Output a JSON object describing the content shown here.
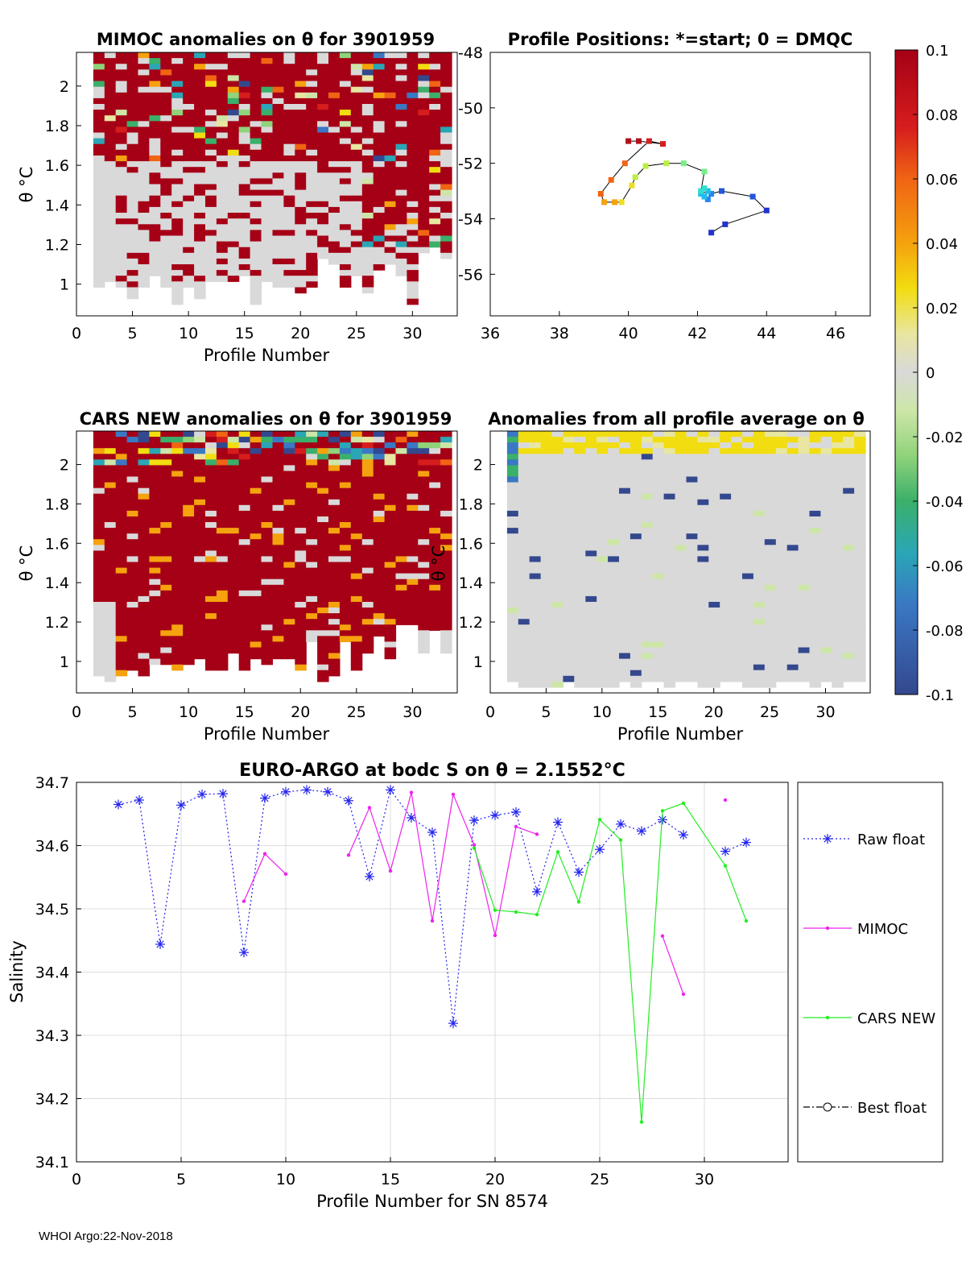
{
  "colors": {
    "raw_float": "#2222ee",
    "mimoc": "#ee22ee",
    "cars_new": "#22ee22",
    "best_float": "#000000",
    "positive_anomaly": "#b0101a",
    "neutral_anomaly": "#d9d9d9",
    "grid": "#dddddd"
  },
  "panels": {
    "mimoc": {
      "title": "MIMOC anomalies on θ  for 3901959",
      "xlabel": "Profile Number",
      "ylabel": "θ °C",
      "xticks": [
        "0",
        "5",
        "10",
        "15",
        "20",
        "25",
        "30"
      ],
      "yticks": [
        "1",
        "1.2",
        "1.4",
        "1.6",
        "1.8",
        "2"
      ]
    },
    "positions": {
      "title": "Profile Positions: *=start; 0 = DMQC",
      "xticks": [
        "36",
        "38",
        "40",
        "42",
        "44",
        "46"
      ],
      "yticks": [
        "-48",
        "-50",
        "-52",
        "-54",
        "-56"
      ]
    },
    "cars": {
      "title": "CARS NEW anomalies on θ for 3901959",
      "xlabel": "Profile Number",
      "ylabel": "θ °C",
      "xticks": [
        "0",
        "5",
        "10",
        "15",
        "20",
        "25",
        "30"
      ],
      "yticks": [
        "1",
        "1.2",
        "1.4",
        "1.6",
        "1.8",
        "2"
      ]
    },
    "average": {
      "title": "Anomalies from all profile average on θ",
      "xlabel": "Profile Number",
      "ylabel": "θ °C",
      "xticks": [
        "0",
        "5",
        "10",
        "15",
        "20",
        "25",
        "30"
      ],
      "yticks": [
        "1",
        "1.2",
        "1.4",
        "1.6",
        "1.8",
        "2"
      ]
    }
  },
  "colorbar": {
    "ticks": [
      "0.1",
      "0.08",
      "0.06",
      "0.04",
      "0.02",
      "0",
      "-0.02",
      "-0.04",
      "-0.06",
      "-0.08",
      "-0.1"
    ]
  },
  "footer": "WHOI Argo:22-Nov-2018",
  "chart_data": [
    {
      "type": "heatmap",
      "title": "MIMOC anomalies on θ  for 3901959",
      "xlabel": "Profile Number",
      "ylabel": "θ °C",
      "xlim": [
        0,
        34
      ],
      "ylim": [
        0.84,
        2.17
      ],
      "clim": [
        -0.1,
        0.1
      ],
      "dominant_value": "mostly saturated positive (≥0.1) above ~1.6 °C, near-zero grey below"
    },
    {
      "type": "scatter",
      "title": "Profile Positions: *=start; 0 = DMQC",
      "xlim": [
        36,
        47
      ],
      "ylim": [
        -57.5,
        -48
      ],
      "lon": [
        42.4,
        42.8,
        44.0,
        43.6,
        42.7,
        42.4,
        42.3,
        42.2,
        42.1,
        42.3,
        42.2,
        42.1,
        42.2,
        41.6,
        41.1,
        40.5,
        40.2,
        40.1,
        39.8,
        39.6,
        39.3,
        39.2,
        39.5,
        39.9,
        40.6,
        41.0,
        40.3,
        40.0
      ],
      "lat": [
        -54.5,
        -54.2,
        -53.7,
        -53.2,
        -53.0,
        -53.1,
        -53.3,
        -53.2,
        -53.1,
        -53.0,
        -52.9,
        -53.0,
        -52.3,
        -52.0,
        -52.0,
        -52.1,
        -52.5,
        -52.8,
        -53.4,
        -53.4,
        -53.4,
        -53.1,
        -52.6,
        -52.0,
        -51.2,
        -51.3,
        -51.2,
        -51.2
      ]
    },
    {
      "type": "heatmap",
      "title": "CARS NEW anomalies on θ for 3901959",
      "xlabel": "Profile Number",
      "ylabel": "θ °C",
      "xlim": [
        0,
        34
      ],
      "ylim": [
        0.84,
        2.17
      ],
      "clim": [
        -0.1,
        0.1
      ],
      "dominant_value": "mostly saturated positive (≥0.1) across most temperatures"
    },
    {
      "type": "heatmap",
      "title": "Anomalies from all profile average on θ",
      "xlabel": "Profile Number",
      "ylabel": "θ °C",
      "xlim": [
        0,
        34
      ],
      "ylim": [
        0.84,
        2.17
      ],
      "clim": [
        -0.1,
        0.1
      ],
      "dominant_value": "near-zero grey with yellow band near θ ≈ 2.1 °C and sparse negative cells"
    },
    {
      "type": "line",
      "title": "EURO-ARGO at bodc S on θ = 2.1552°C",
      "xlabel": "Profile Number for SN 8574",
      "ylabel": "Salinity",
      "xlim": [
        0,
        34
      ],
      "ylim": [
        34.1,
        34.7
      ],
      "xticks": [
        "0",
        "5",
        "10",
        "15",
        "20",
        "25",
        "30"
      ],
      "yticks": [
        "34.1",
        "34.2",
        "34.3",
        "34.4",
        "34.5",
        "34.6",
        "34.7"
      ],
      "grid": true,
      "legend": "right outside",
      "series": [
        {
          "name": "Raw float",
          "style": "dotted-asterisk",
          "x": [
            2,
            3,
            4,
            5,
            6,
            7,
            8,
            9,
            10,
            11,
            12,
            13,
            14,
            15,
            16,
            17,
            18,
            19,
            20,
            21,
            22,
            23,
            24,
            25,
            26,
            27,
            28,
            29,
            30,
            31,
            32
          ],
          "y": [
            34.665,
            34.672,
            34.444,
            34.664,
            34.681,
            34.682,
            34.431,
            34.675,
            34.685,
            34.688,
            34.685,
            34.671,
            34.551,
            34.688,
            34.644,
            34.621,
            34.319,
            34.64,
            34.648,
            34.653,
            34.527,
            34.637,
            34.558,
            34.594,
            34.634,
            34.623,
            34.641,
            34.617,
            null,
            34.591,
            34.605
          ]
        },
        {
          "name": "MIMOC",
          "style": "solid-dot",
          "x": [
            8,
            9,
            10,
            null,
            13,
            14,
            15,
            16,
            17,
            18,
            19,
            20,
            21,
            22,
            null,
            28,
            29,
            30,
            31
          ],
          "y": [
            34.512,
            34.587,
            34.555,
            null,
            34.585,
            34.66,
            34.56,
            34.684,
            34.481,
            34.681,
            34.601,
            34.458,
            34.63,
            34.618,
            null,
            34.457,
            34.365,
            null,
            34.672
          ]
        },
        {
          "name": "CARS NEW",
          "style": "solid-dot",
          "x": [
            19,
            20,
            21,
            22,
            23,
            24,
            25,
            26,
            27,
            28,
            29,
            31,
            32
          ],
          "y": [
            34.596,
            34.498,
            34.495,
            34.491,
            34.59,
            34.511,
            34.641,
            34.609,
            34.163,
            34.655,
            34.667,
            34.568,
            34.481
          ]
        },
        {
          "name": "Best float",
          "style": "dashdot-circle",
          "x": [],
          "y": []
        }
      ]
    }
  ]
}
